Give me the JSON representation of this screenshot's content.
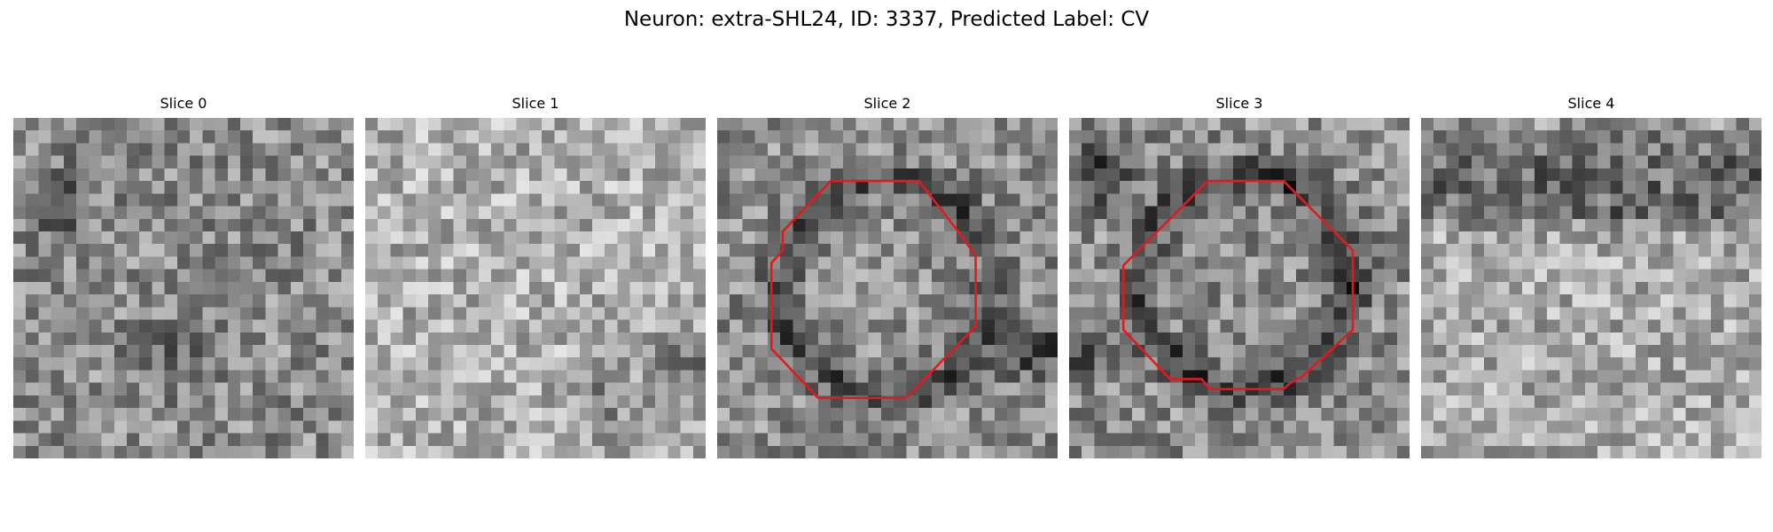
{
  "figure": {
    "title": "Neuron: extra-SHL24, ID: 3337, Predicted Label: CV"
  },
  "slices": [
    {
      "label": "Slice 0",
      "mean_gray": 140,
      "has_contour": false
    },
    {
      "label": "Slice 1",
      "mean_gray": 175,
      "has_contour": false
    },
    {
      "label": "Slice 2",
      "mean_gray": 140,
      "has_contour": true
    },
    {
      "label": "Slice 3",
      "mean_gray": 140,
      "has_contour": true
    },
    {
      "label": "Slice 4",
      "mean_gray": 150,
      "has_contour": false
    }
  ],
  "colors": {
    "contour": "#e31a1c"
  }
}
